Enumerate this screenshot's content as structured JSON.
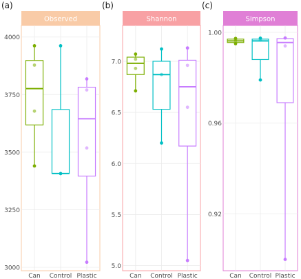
{
  "chart_data": [
    {
      "type": "boxplot",
      "panel_label": "(a)",
      "title": "Observed",
      "strip_color": "#F9CBA7",
      "border_color": "#F9CBA7",
      "categories": [
        "Can",
        "Control",
        "Plastic"
      ],
      "colors": [
        "#7CAE00",
        "#00BFC4",
        "#C77CFF"
      ],
      "ylim": [
        2985,
        4050
      ],
      "yticks": [
        3000,
        3250,
        3500,
        3750,
        4000
      ],
      "ytick_labels": [
        "3000",
        "3250",
        "3500",
        "3750",
        "4000"
      ],
      "boxes": [
        {
          "min": 3440,
          "q1": 3618,
          "median": 3776,
          "q3": 3898,
          "max": 3962,
          "points": [
            3962,
            3878,
            3678,
            3440
          ]
        },
        {
          "min": 3407,
          "q1": 3407,
          "median": 3407,
          "q3": 3685,
          "max": 3962,
          "points": [
            3962,
            3407
          ]
        },
        {
          "min": 3022,
          "q1": 3396,
          "median": 3645,
          "q3": 3782,
          "max": 3818,
          "points": [
            3818,
            3770,
            3518,
            3022
          ]
        }
      ]
    },
    {
      "type": "boxplot",
      "panel_label": "(b)",
      "title": "Shannon",
      "strip_color": "#F8A1A4",
      "border_color": "#F8A1A4",
      "categories": [
        "Can",
        "Control",
        "Plastic"
      ],
      "colors": [
        "#7CAE00",
        "#00BFC4",
        "#C77CFF"
      ],
      "ylim": [
        4.95,
        7.35
      ],
      "yticks": [
        5.0,
        5.5,
        6.0,
        6.5,
        7.0
      ],
      "ytick_labels": [
        "5.0",
        "5.5",
        "6.0",
        "6.5",
        "7.0"
      ],
      "boxes": [
        {
          "min": 6.71,
          "q1": 6.87,
          "median": 6.98,
          "q3": 7.04,
          "max": 7.07,
          "points": [
            7.07,
            7.02,
            6.93,
            6.71
          ]
        },
        {
          "min": 6.2,
          "q1": 6.53,
          "median": 6.87,
          "q3": 7.0,
          "max": 7.12,
          "points": [
            7.12,
            6.87,
            6.2
          ]
        },
        {
          "min": 5.05,
          "q1": 6.17,
          "median": 6.75,
          "q3": 7.01,
          "max": 7.13,
          "points": [
            7.13,
            6.96,
            6.55,
            5.05
          ]
        }
      ]
    },
    {
      "type": "boxplot",
      "panel_label": "(c)",
      "title": "Simpson",
      "strip_color": "#E07FD6",
      "border_color": "#E07FD6",
      "categories": [
        "Can",
        "Control",
        "Plastic"
      ],
      "colors": [
        "#7CAE00",
        "#00BFC4",
        "#C77CFF"
      ],
      "ylim": [
        0.895,
        1.003
      ],
      "yticks": [
        0.92,
        0.96,
        1.0
      ],
      "ytick_labels": [
        "0.92",
        "0.96",
        "1.00"
      ],
      "boxes": [
        {
          "min": 0.995,
          "q1": 0.9955,
          "median": 0.9962,
          "q3": 0.997,
          "max": 0.9973,
          "points": [
            0.9973,
            0.9968,
            0.9962,
            0.995
          ]
        },
        {
          "min": 0.979,
          "q1": 0.988,
          "median": 0.9962,
          "q3": 0.997,
          "max": 0.9974,
          "points": [
            0.9974,
            0.9966,
            0.979
          ]
        },
        {
          "min": 0.9,
          "q1": 0.969,
          "median": 0.9955,
          "q3": 0.9972,
          "max": 0.9975,
          "points": [
            0.9975,
            0.994,
            0.9
          ]
        }
      ]
    }
  ]
}
